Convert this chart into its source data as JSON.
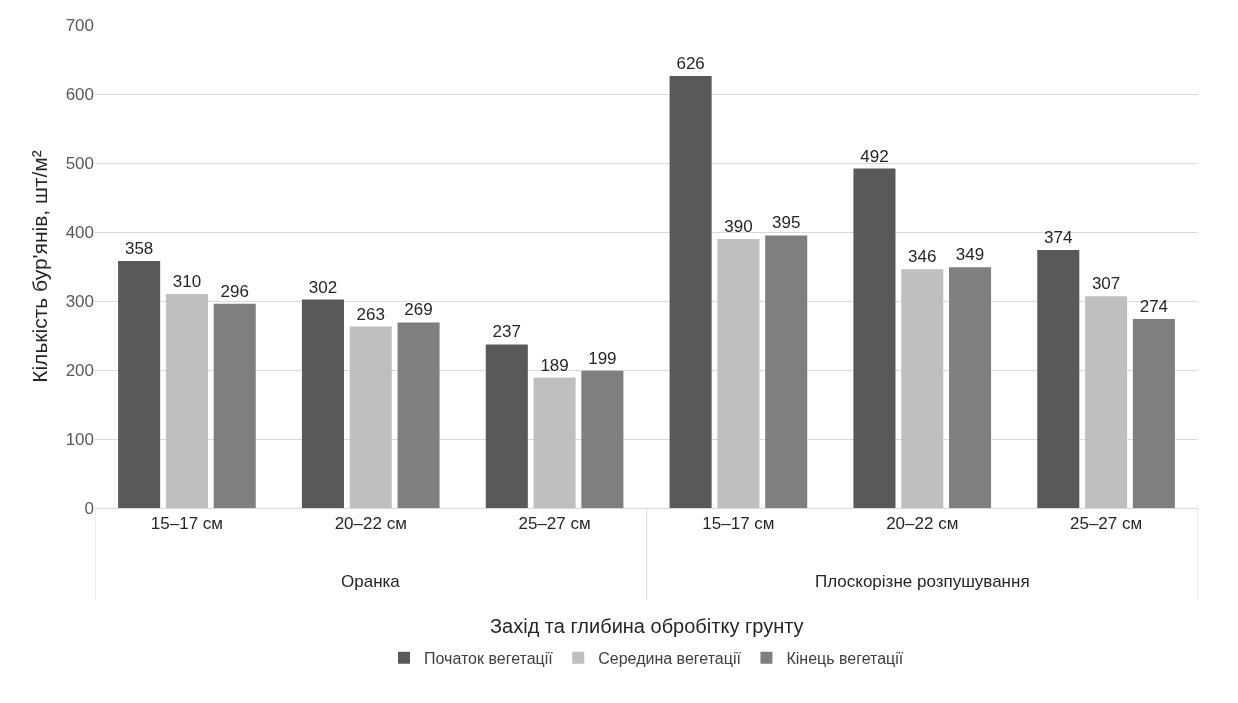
{
  "chart_data": {
    "type": "bar",
    "xlabel": "Захід та глибина обробітку грунту",
    "ylabel": "Кількість бур'янів, шт/м²",
    "categories": [
      "15–17 см",
      "20–22 см",
      "25–27 см",
      "15–17 см",
      "20–22 см",
      "25–27 см"
    ],
    "series": [
      {
        "name": "Початок вегетації",
        "color": "#595959",
        "values": [
          358,
          302,
          237,
          626,
          492,
          374
        ]
      },
      {
        "name": "Середина вегетації",
        "color": "#bfbfbf",
        "values": [
          310,
          263,
          189,
          390,
          346,
          307
        ]
      },
      {
        "name": "Кінець вегетації",
        "color": "#7f7f7f",
        "values": [
          296,
          269,
          199,
          395,
          349,
          274
        ]
      }
    ],
    "annotations": [
      "Оранка",
      "Плоскорізне розпушування"
    ],
    "ylim": [
      0,
      700
    ],
    "yticks": [
      0,
      100,
      200,
      300,
      400,
      500,
      600,
      700
    ],
    "grid": "y",
    "legend": "bottom",
    "data_labels": true
  }
}
